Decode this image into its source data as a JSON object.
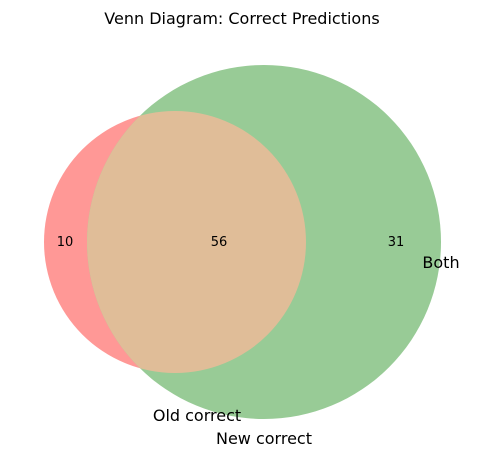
{
  "title": "Venn Diagram: Correct Predictions",
  "sets": {
    "old": {
      "label": "Old correct",
      "color": "#ff9896",
      "opacity": 1.0
    },
    "new": {
      "label": "New correct",
      "color": "#98cb96"
    },
    "both": {
      "label": "Both",
      "color": "#e0bd98"
    }
  },
  "counts": {
    "old_only": "10",
    "intersection": "56",
    "new_only": "31"
  }
}
